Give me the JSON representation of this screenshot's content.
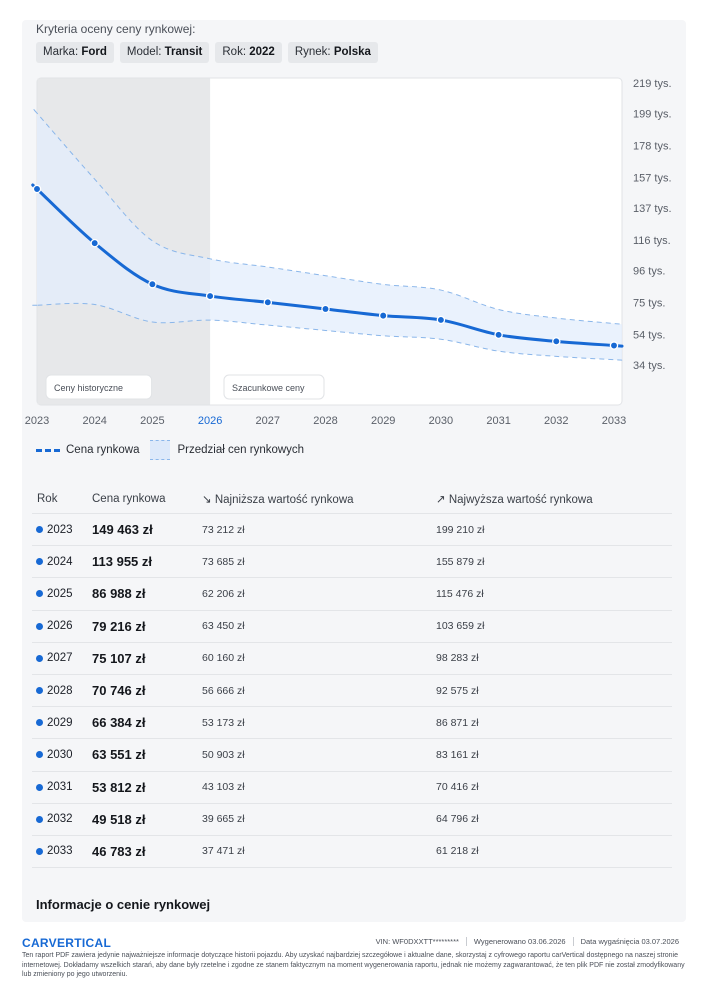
{
  "criteria": {
    "title": "Kryteria oceny ceny rynkowej:",
    "chips": [
      {
        "key": "Marka:",
        "value": "Ford"
      },
      {
        "key": "Model:",
        "value": "Transit"
      },
      {
        "key": "Rok:",
        "value": "2022"
      },
      {
        "key": "Rynek:",
        "value": "Polska"
      }
    ]
  },
  "chart_data": {
    "type": "line",
    "x": [
      2023,
      2024,
      2025,
      2026,
      2027,
      2028,
      2029,
      2030,
      2031,
      2032,
      2033
    ],
    "y_tick_labels": [
      "219 tys.",
      "199 tys.",
      "178 tys.",
      "157 tys.",
      "137 tys.",
      "116 tys.",
      "96 tys.",
      "75 tys.",
      "54 tys.",
      "34 tys."
    ],
    "y_tick_values": [
      219,
      199,
      178,
      157,
      137,
      116,
      96,
      75,
      54,
      34
    ],
    "x_tick_labels": [
      "2023",
      "2024",
      "2025",
      "2026",
      "2027",
      "2028",
      "2029",
      "2030",
      "2031",
      "2032",
      "2033"
    ],
    "highlight_x_label": "2026",
    "ylim": [
      34,
      219
    ],
    "series": [
      {
        "name": "Cena rynkowa",
        "values": [
          149.463,
          113.955,
          86.988,
          79.216,
          75.107,
          70.746,
          66.384,
          63.551,
          53.812,
          49.518,
          46.783
        ]
      }
    ],
    "band": {
      "name": "Przedział cen rynkowych",
      "lower": [
        73.212,
        73.685,
        62.206,
        63.45,
        60.16,
        56.666,
        53.173,
        50.903,
        43.103,
        39.665,
        37.471
      ],
      "upper": [
        199.21,
        155.879,
        115.476,
        103.659,
        98.283,
        92.575,
        86.871,
        83.161,
        70.416,
        64.796,
        61.218
      ]
    },
    "regions": [
      {
        "label": "Ceny historyczne",
        "from": 2023,
        "to": 2026
      },
      {
        "label": "Szacunkowe ceny",
        "from": 2026,
        "to": 2033
      }
    ],
    "colors": {
      "line": "#1769d4",
      "band": "#e3eefc",
      "band_edge": "#8ab6ea",
      "history_bg": "#e7e8ea",
      "highlight_tick": "#1769d4"
    },
    "legend_placement": "bottom-left"
  },
  "legend": {
    "line_label": "Cena rynkowa",
    "band_label": "Przedział cen rynkowych"
  },
  "table": {
    "headers": {
      "year": "Rok",
      "price": "Cena rynkowa",
      "min": "Najniższa wartość rynkowa",
      "max": "Najwyższa wartość rynkowa"
    },
    "rows": [
      {
        "year": "2023",
        "price": "149 463 zł",
        "min": "73 212 zł",
        "max": "199 210 zł"
      },
      {
        "year": "2024",
        "price": "113 955 zł",
        "min": "73 685 zł",
        "max": "155 879 zł"
      },
      {
        "year": "2025",
        "price": "86 988 zł",
        "min": "62 206 zł",
        "max": "115 476 zł"
      },
      {
        "year": "2026",
        "price": "79 216 zł",
        "min": "63 450 zł",
        "max": "103 659 zł"
      },
      {
        "year": "2027",
        "price": "75 107 zł",
        "min": "60 160 zł",
        "max": "98 283 zł"
      },
      {
        "year": "2028",
        "price": "70 746 zł",
        "min": "56 666 zł",
        "max": "92 575 zł"
      },
      {
        "year": "2029",
        "price": "66 384 zł",
        "min": "53 173 zł",
        "max": "86 871 zł"
      },
      {
        "year": "2030",
        "price": "63 551 zł",
        "min": "50 903 zł",
        "max": "83 161 zł"
      },
      {
        "year": "2031",
        "price": "53 812 zł",
        "min": "43 103 zł",
        "max": "70 416 zł"
      },
      {
        "year": "2032",
        "price": "49 518 zł",
        "min": "39 665 zł",
        "max": "64 796 zł"
      },
      {
        "year": "2033",
        "price": "46 783 zł",
        "min": "37 471 zł",
        "max": "61 218 zł"
      }
    ]
  },
  "section_title": "Informacje o cenie rynkowej",
  "footer": {
    "logo": "CARVERTICAL",
    "vin": "VIN:  WF0DXXTT*********",
    "generated": "Wygenerowano  03.06.2026",
    "expires": "Data wygaśnięcia  03.07.2026",
    "disclaimer": "Ten raport PDF zawiera jedynie najważniejsze informacje dotyczące historii pojazdu. Aby uzyskać najbardziej szczegółowe i aktualne dane, skorzystaj z cyfrowego raportu carVertical dostępnego na naszej stronie internetowej. Dokładamy wszelkich starań, aby dane były rzetelne i zgodne ze stanem faktycznym na moment wygenerowania raportu, jednak nie możemy zagwarantować, że ten plik PDF nie został zmodyfikowany lub zmieniony po jego utworzeniu."
  }
}
